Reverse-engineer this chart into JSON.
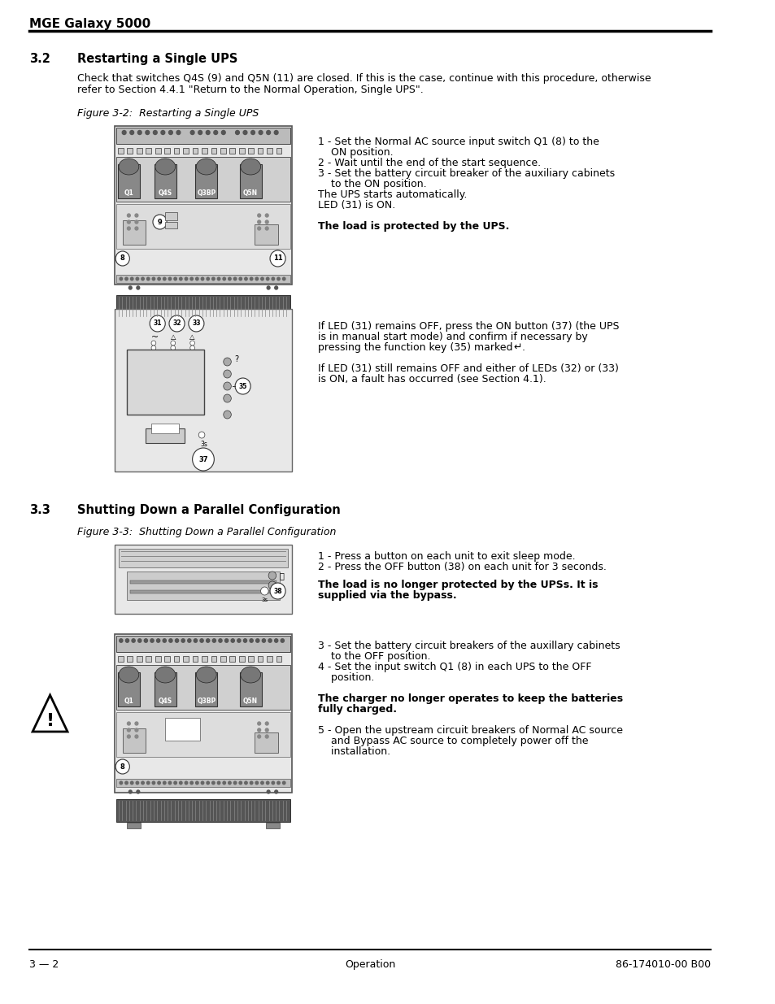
{
  "page_title": "MGE Galaxy 5000",
  "section_32_title": "3.2    Restarting a Single UPS",
  "section_32_intro": "Check that switches Q4S (9) and Q5N (11) are closed. If this is the case, continue with this procedure, otherwise\nrefer to Section 4.4.1 \"Return to the Normal Operation, Single UPS\".",
  "fig32_caption": "Figure 3-2:  Restarting a Single UPS",
  "fig32_instructions": [
    "1 - Set the Normal AC source input switch Q1 (8) to the\n    ON position.",
    "2 - Wait until the end of the start sequence.",
    "3 - Set the battery circuit breaker of the auxiliary cabinets\n    to the ON position.",
    "The UPS starts automatically.",
    "LED (31) is ON.",
    "",
    "The load is protected by the UPS."
  ],
  "fig32_bold_line": "The load is protected by the UPS.",
  "fig33_instructions_above": "If LED (31) remains OFF, press the ON button (37) (the UPS\nis in manual start mode) and confirm if necessary by\npressing the function key (35) marked",
  "fig33_instructions_below": "If LED (31) still remains OFF and either of LEDs (32) or (33)\nis ON, a fault has occurred (see Section 4.1).",
  "section_33_title": "3.3    Shutting Down a Parallel Configuration",
  "fig33b_caption": "Figure 3-3:  Shutting Down a Parallel Configuration",
  "fig33b_instructions": [
    "1 - Press a button on each unit to exit sleep mode.",
    "2 - Press the OFF button (38) on each unit for 3 seconds.",
    "",
    "The load is no longer protected by the UPSs. It is\nsupplied via the bypass.",
    "",
    "3 - Set the battery circuit breakers of the auxillary cabinets\n    to the OFF position.",
    "4 - Set the input switch Q1 (8) in each UPS to the OFF\n    position.",
    "",
    "The charger no longer operates to keep the batteries\nfully charged.",
    "",
    "5 - Open the upstream circuit breakers of Normal AC source\n    and Bypass AC source to completely power off the\n    installation."
  ],
  "footer_left": "3 — 2",
  "footer_center": "Operation",
  "footer_right": "86-174010-00 B00",
  "bg_color": "#ffffff",
  "text_color": "#000000",
  "line_color": "#000000"
}
